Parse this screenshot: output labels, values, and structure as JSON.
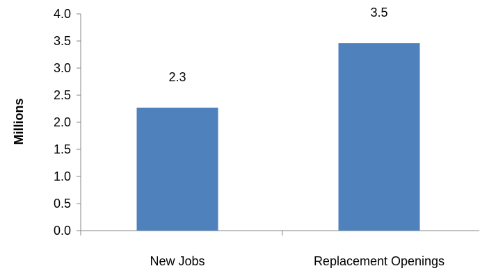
{
  "chart_data": {
    "type": "bar",
    "categories": [
      "New Jobs",
      "Replacement Openings"
    ],
    "values": [
      2.27,
      3.46
    ],
    "data_labels": [
      "2.3",
      "3.5"
    ],
    "title": "",
    "xlabel": "",
    "ylabel": "Millions",
    "ylim": [
      0,
      4.0
    ],
    "yticks": [
      "0.0",
      "0.5",
      "1.0",
      "1.5",
      "2.0",
      "2.5",
      "3.0",
      "3.5",
      "4.0"
    ],
    "grid": false,
    "legend": "none",
    "bar_color": "#4F81BD",
    "axis_color": "#868686"
  }
}
